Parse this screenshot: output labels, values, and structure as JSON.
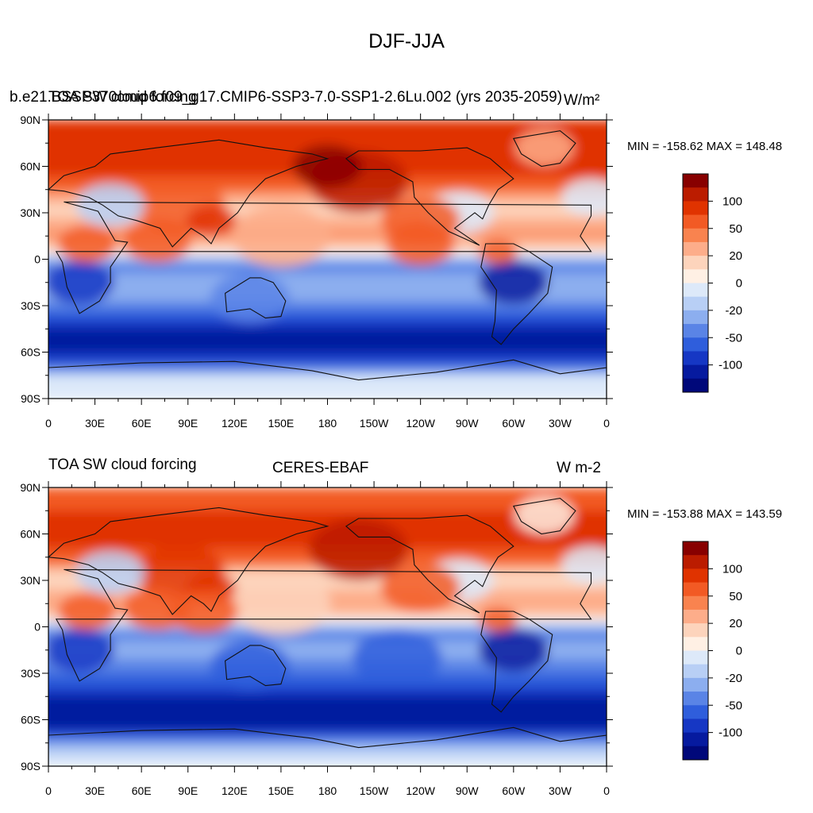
{
  "title": "DJF-JJA",
  "units_label": "W m-2",
  "lat_ticks": [
    "90N",
    "60N",
    "30N",
    "0",
    "30S",
    "60S",
    "90S"
  ],
  "lon_ticks": [
    "0",
    "30E",
    "60E",
    "90E",
    "120E",
    "150E",
    "180",
    "150W",
    "120W",
    "90W",
    "60W",
    "30W",
    "0"
  ],
  "colorbar": {
    "labels": [
      "100",
      "50",
      "20",
      "0",
      "-20",
      "-50",
      "-100"
    ],
    "colors": [
      "#880000",
      "#bb1c00",
      "#e03300",
      "#f25a24",
      "#f9834f",
      "#fdad8a",
      "#fdd4bc",
      "#fff0e4",
      "#dde9f9",
      "#b8cff5",
      "#8caeef",
      "#5a84e6",
      "#2f5edc",
      "#1637c4",
      "#061a9f",
      "#00087a"
    ]
  },
  "panels": [
    {
      "left_title": "TOA SW cloud forcing",
      "case_name": "b.e21.BSSP370cmip6.f09_g17.CMIP6-SSP3-7.0-SSP1-2.6Lu.002 (yrs 2035-2059)",
      "units": "W/m²",
      "min_max": "MIN = -158.62 MAX = 148.48",
      "data_min": -158.62,
      "data_max": 148.48
    },
    {
      "left_title": "TOA SW cloud forcing",
      "center_title": "CERES-EBAF",
      "units": "W m-2",
      "min_max": "MIN = -153.88 MAX = 143.59",
      "data_min": -153.88,
      "data_max": 143.59
    }
  ],
  "chart_data": [
    {
      "type": "heatmap",
      "title": "DJF-JJA",
      "left_title": "TOA SW cloud forcing",
      "case_name": "b.e21.BSSP370cmip6.f09_g17.CMIP6-SSP3-7.0-SSP1-2.6Lu.002 (yrs 2035-2059)",
      "units": "W/m²",
      "x_range": [
        0,
        360
      ],
      "y_range": [
        -90,
        90
      ],
      "color_levels": [
        -100,
        -50,
        -20,
        0,
        20,
        50,
        100
      ],
      "min": -158.62,
      "max": 148.48,
      "zonal_profile": {
        "lat": [
          85,
          75,
          65,
          55,
          45,
          35,
          25,
          15,
          5,
          -5,
          -15,
          -25,
          -35,
          -45,
          -55,
          -65,
          -75,
          -85
        ],
        "value": [
          80,
          95,
          100,
          80,
          55,
          10,
          25,
          40,
          5,
          -45,
          -25,
          -30,
          -60,
          -95,
          -130,
          -80,
          -10,
          -5
        ]
      }
    },
    {
      "type": "heatmap",
      "left_title": "TOA SW cloud forcing",
      "center_title": "CERES-EBAF",
      "units": "W m-2",
      "x_range": [
        0,
        360
      ],
      "y_range": [
        -90,
        90
      ],
      "color_levels": [
        -100,
        -50,
        -20,
        0,
        20,
        50,
        100
      ],
      "min": -153.88,
      "max": 143.59,
      "zonal_profile": {
        "lat": [
          85,
          75,
          65,
          55,
          45,
          35,
          25,
          15,
          5,
          -5,
          -15,
          -25,
          -35,
          -45,
          -55,
          -65,
          -75,
          -85
        ],
        "value": [
          55,
          75,
          80,
          85,
          60,
          15,
          20,
          35,
          5,
          -40,
          -30,
          -40,
          -65,
          -100,
          -130,
          -100,
          -25,
          -10
        ]
      }
    }
  ]
}
